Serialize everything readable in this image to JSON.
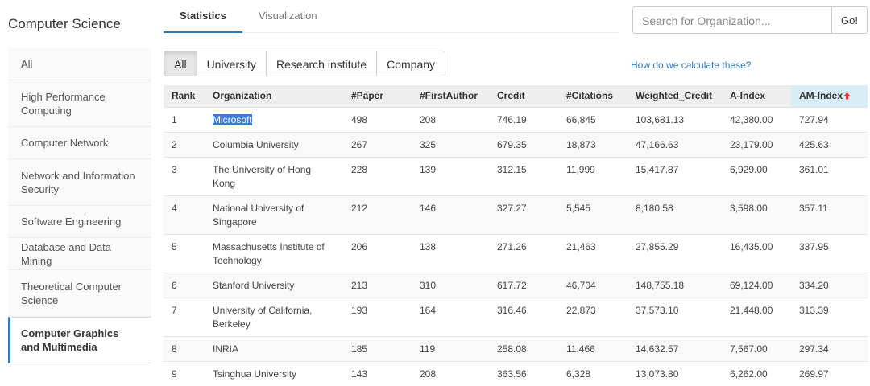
{
  "sidebar": {
    "title": "Computer Science",
    "items": [
      "All",
      "High Performance Computing",
      "Computer Network",
      "Network and Information Security",
      "Software Engineering",
      "Database and Data Mining",
      "Theoretical Computer Science",
      "Computer Graphics and Multimedia"
    ],
    "active": 7
  },
  "tabs": {
    "items": [
      "Statistics",
      "Visualization"
    ],
    "active": 0
  },
  "search": {
    "placeholder": "Search for Organization...",
    "button": "Go!"
  },
  "filters": {
    "items": [
      "All",
      "University",
      "Research institute",
      "Company"
    ],
    "active": 0
  },
  "help_link": "How do we calculate these?",
  "table": {
    "columns": [
      "Rank",
      "Organization",
      "#Paper",
      "#FirstAuthor",
      "Credit",
      "#Citations",
      "Weighted_Credit",
      "A-Index",
      "AM-Index"
    ],
    "sorted_column": 8,
    "rows": [
      [
        "1",
        "Microsoft",
        "498",
        "208",
        "746.19",
        "66,845",
        "103,681.13",
        "42,380.00",
        "727.94"
      ],
      [
        "2",
        "Columbia University",
        "267",
        "325",
        "679.35",
        "18,873",
        "47,166.63",
        "23,179.00",
        "425.63"
      ],
      [
        "3",
        "The University of Hong Kong",
        "228",
        "139",
        "312.15",
        "11,999",
        "15,417.87",
        "6,929.00",
        "361.01"
      ],
      [
        "4",
        "National University of Singapore",
        "212",
        "146",
        "327.27",
        "5,545",
        "8,180.58",
        "3,598.00",
        "357.11"
      ],
      [
        "5",
        "Massachusetts Institute of Technology",
        "206",
        "138",
        "271.26",
        "21,463",
        "27,855.29",
        "16,435.00",
        "337.95"
      ],
      [
        "6",
        "Stanford University",
        "213",
        "310",
        "617.72",
        "46,704",
        "148,755.18",
        "69,124.00",
        "334.20"
      ],
      [
        "7",
        "University of California, Berkeley",
        "193",
        "164",
        "316.46",
        "22,873",
        "37,573.10",
        "21,448.00",
        "313.39"
      ],
      [
        "8",
        "INRIA",
        "185",
        "119",
        "258.08",
        "11,466",
        "14,632.57",
        "7,567.00",
        "297.34"
      ],
      [
        "9",
        "Tsinghua University",
        "143",
        "208",
        "363.56",
        "6,328",
        "13,073.80",
        "6,262.00",
        "269.97"
      ]
    ]
  }
}
